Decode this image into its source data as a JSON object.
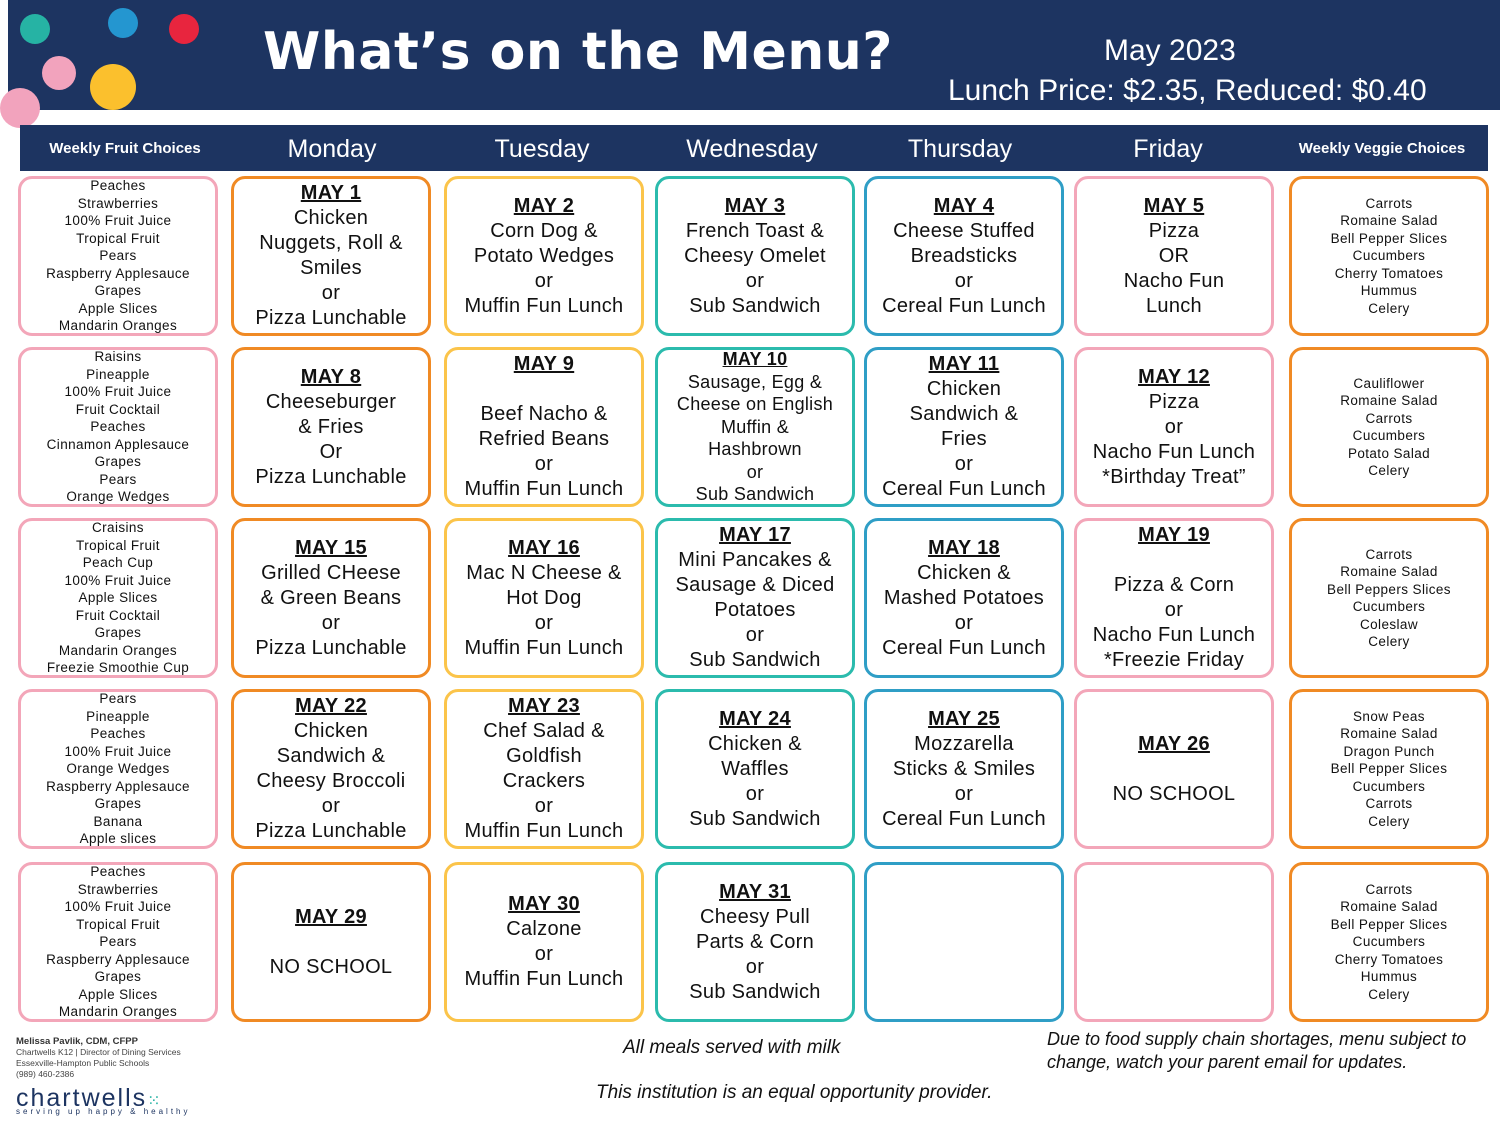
{
  "header": {
    "title": "What’s on the Menu?",
    "month": "May 2023",
    "price": "Lunch Price: $2.35, Reduced: $0.40",
    "colors": {
      "navy": "#1d3461",
      "teal": "#26b3a4",
      "blue": "#2496d0",
      "red": "#e8253e",
      "pink": "#f2a3bd",
      "yellow": "#fbc02d"
    }
  },
  "columns": {
    "fruit": "Weekly Fruit Choices",
    "days": [
      "Monday",
      "Tuesday",
      "Wednesday",
      "Thursday",
      "Friday"
    ],
    "veggie": "Weekly Veggie Choices"
  },
  "colors": {
    "pink": "#f3a6b9",
    "orange": "#f08a24",
    "yellow": "#fbc44a",
    "teal": "#2bbbad",
    "blue": "#2f9ec6"
  },
  "weeks": [
    {
      "fruit": [
        "Peaches",
        "Strawberries",
        "100% Fruit Juice",
        "Tropical Fruit",
        "Pears",
        "Raspberry Applesauce",
        "Grapes",
        "Apple Slices",
        "Mandarin Oranges"
      ],
      "days": [
        {
          "date": "MAY 1",
          "lines": [
            "Chicken",
            "Nuggets, Roll &",
            "Smiles",
            "or",
            "Pizza Lunchable"
          ]
        },
        {
          "date": "MAY 2",
          "lines": [
            "Corn Dog &",
            "Potato Wedges",
            "or",
            "Muffin Fun Lunch"
          ]
        },
        {
          "date": "MAY 3",
          "lines": [
            "French Toast &",
            "Cheesy Omelet",
            "or",
            "Sub Sandwich"
          ]
        },
        {
          "date": "MAY 4",
          "lines": [
            "Cheese Stuffed",
            "Breadsticks",
            "or",
            "Cereal Fun Lunch"
          ]
        },
        {
          "date": "MAY 5",
          "lines": [
            "Pizza",
            "OR",
            "Nacho Fun",
            "Lunch"
          ]
        }
      ],
      "veggie": [
        "Carrots",
        "Romaine Salad",
        "Bell Pepper Slices",
        "Cucumbers",
        "Cherry Tomatoes",
        "Hummus",
        "Celery"
      ]
    },
    {
      "fruit": [
        "Raisins",
        "Pineapple",
        "100% Fruit Juice",
        "Fruit Cocktail",
        "Peaches",
        "Cinnamon Applesauce",
        "Grapes",
        "Pears",
        "Orange Wedges"
      ],
      "days": [
        {
          "date": "MAY 8",
          "lines": [
            "Cheeseburger",
            "& Fries",
            "Or",
            "Pizza Lunchable"
          ]
        },
        {
          "date": "MAY 9",
          "lines": [
            "",
            "Beef Nacho &",
            "Refried Beans",
            "or",
            "Muffin Fun Lunch"
          ]
        },
        {
          "date": "MAY 10",
          "lines": [
            "Sausage, Egg &",
            "Cheese on English",
            "Muffin &",
            "Hashbrown",
            "or",
            "Sub Sandwich"
          ]
        },
        {
          "date": "MAY 11",
          "lines": [
            "Chicken",
            "Sandwich &",
            "Fries",
            "or",
            "Cereal Fun Lunch"
          ]
        },
        {
          "date": "MAY 12",
          "lines": [
            "Pizza",
            "or",
            "Nacho Fun Lunch",
            "*Birthday Treat”"
          ]
        }
      ],
      "veggie": [
        "Cauliflower",
        "Romaine Salad",
        "Carrots",
        "Cucumbers",
        "Potato Salad",
        "Celery"
      ]
    },
    {
      "fruit": [
        "Craisins",
        "Tropical Fruit",
        "Peach Cup",
        "100% Fruit Juice",
        "Apple Slices",
        "Fruit Cocktail",
        "Grapes",
        "Mandarin Oranges",
        "Freezie Smoothie Cup"
      ],
      "days": [
        {
          "date": "MAY 15",
          "lines": [
            "Grilled CHeese",
            "& Green Beans",
            "or",
            "Pizza Lunchable"
          ]
        },
        {
          "date": "MAY 16",
          "lines": [
            "Mac N Cheese &",
            "Hot Dog",
            "or",
            "Muffin Fun Lunch"
          ]
        },
        {
          "date": "MAY 17",
          "lines": [
            "Mini Pancakes &",
            "Sausage & Diced",
            "Potatoes",
            "or",
            "Sub Sandwich"
          ]
        },
        {
          "date": "MAY 18",
          "lines": [
            "Chicken &",
            "Mashed Potatoes",
            "or",
            "Cereal Fun Lunch"
          ]
        },
        {
          "date": "MAY 19",
          "lines": [
            "",
            "Pizza & Corn",
            "or",
            "Nacho Fun Lunch",
            "*Freezie Friday"
          ]
        }
      ],
      "veggie": [
        "Carrots",
        "Romaine Salad",
        "Bell Peppers Slices",
        "Cucumbers",
        "Coleslaw",
        "Celery"
      ]
    },
    {
      "fruit": [
        "Pears",
        "Pineapple",
        "Peaches",
        "100% Fruit Juice",
        "Orange Wedges",
        "Raspberry Applesauce",
        "Grapes",
        "Banana",
        "Apple slices"
      ],
      "days": [
        {
          "date": "MAY 22",
          "lines": [
            "Chicken",
            "Sandwich &",
            "Cheesy Broccoli",
            "or",
            "Pizza Lunchable"
          ]
        },
        {
          "date": "MAY 23",
          "lines": [
            "Chef Salad &",
            "Goldfish",
            "Crackers",
            "or",
            "Muffin Fun Lunch"
          ]
        },
        {
          "date": "MAY 24",
          "lines": [
            "Chicken &",
            "Waffles",
            "or",
            "Sub Sandwich"
          ]
        },
        {
          "date": "MAY 25",
          "lines": [
            "Mozzarella",
            "Sticks & Smiles",
            "or",
            "Cereal Fun Lunch"
          ]
        },
        {
          "date": "MAY 26",
          "lines": [
            "",
            "NO SCHOOL"
          ]
        }
      ],
      "veggie": [
        "Snow Peas",
        "Romaine Salad",
        "Dragon Punch",
        "Bell Pepper Slices",
        "Cucumbers",
        "Carrots",
        "Celery"
      ]
    },
    {
      "fruit": [
        "Peaches",
        "Strawberries",
        "100% Fruit Juice",
        "Tropical Fruit",
        "Pears",
        "Raspberry Applesauce",
        "Grapes",
        "Apple Slices",
        "Mandarin Oranges"
      ],
      "days": [
        {
          "date": "MAY 29",
          "lines": [
            "",
            "NO SCHOOL"
          ]
        },
        {
          "date": "MAY 30",
          "lines": [
            "Calzone",
            "or",
            "Muffin Fun Lunch"
          ]
        },
        {
          "date": "MAY  31",
          "lines": [
            "Cheesy Pull",
            "Parts & Corn",
            "or",
            "Sub Sandwich"
          ]
        },
        {
          "date": "",
          "lines": []
        },
        {
          "date": "",
          "lines": []
        }
      ],
      "veggie": [
        "Carrots",
        "Romaine Salad",
        "Bell Pepper Slices",
        "Cucumbers",
        "Cherry Tomatoes",
        "Hummus",
        "Celery"
      ]
    }
  ],
  "footer": {
    "name": "Melissa Pavlik, CDM, CFPP",
    "role": "Chartwells K12 | Director of Dining Services",
    "school": "Essexville-Hampton Public Schools",
    "phone": "(989) 460-2386",
    "logo": "chartwells",
    "tagline": "serving up happy & healthy",
    "milk": "All meals served with milk",
    "equal": "This institution is an equal opportunity provider.",
    "supply": "Due to food supply chain shortages, menu subject to change, watch your parent email for updates."
  }
}
